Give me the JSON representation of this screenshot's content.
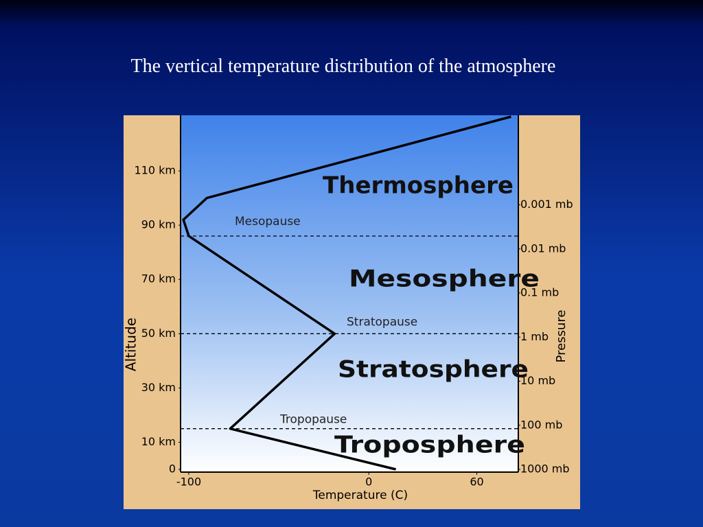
{
  "chart_data": {
    "type": "line",
    "title": "The vertical temperature distribution of the atmosphere",
    "x_label": "Temperature (C)",
    "y_label": "Altitude",
    "y2_label": "Pressure",
    "x": [
      15,
      -77,
      -19,
      -100,
      -103,
      -90,
      79
    ],
    "series": [
      {
        "color": "#000000",
        "values": [
          0,
          15,
          50,
          86,
          92,
          100,
          130
        ]
      }
    ],
    "xlim": [
      -100,
      80
    ],
    "xticks": [
      -100,
      0,
      60
    ],
    "ylim": [
      0,
      130
    ],
    "yticks": [
      0,
      {
        "value": 10,
        "label": "10 km"
      },
      {
        "value": 30,
        "label": "30 km"
      },
      {
        "value": 50,
        "label": "50 km"
      },
      {
        "value": 70,
        "label": "70 km"
      },
      {
        "value": 90,
        "label": "90 km"
      },
      {
        "value": 110,
        "label": "110 km"
      }
    ],
    "y2lim": [
      1000,
      1e-05
    ],
    "y2log": true,
    "y2ticks": [
      {
        "value": 1000,
        "label": "1000 mb"
      },
      {
        "value": 100,
        "label": "100 mb"
      },
      {
        "value": 10,
        "label": "10 mb"
      },
      {
        "value": 1,
        "label": "1 mb"
      },
      {
        "value": 0.1,
        "label": "0.1 mb"
      },
      {
        "value": 0.01,
        "label": "0.01 mb"
      },
      {
        "value": 0.001,
        "label": "0.001 mb"
      }
    ],
    "layers": [
      "Thermosphere",
      "Mesosphere",
      "Stratosphere",
      "Troposphere"
    ],
    "pauses": [
      {
        "name": "Mesopause",
        "altitude": 86
      },
      {
        "name": "Stratopause",
        "altitude": 50
      },
      {
        "name": "Tropopause",
        "altitude": 15
      }
    ]
  }
}
